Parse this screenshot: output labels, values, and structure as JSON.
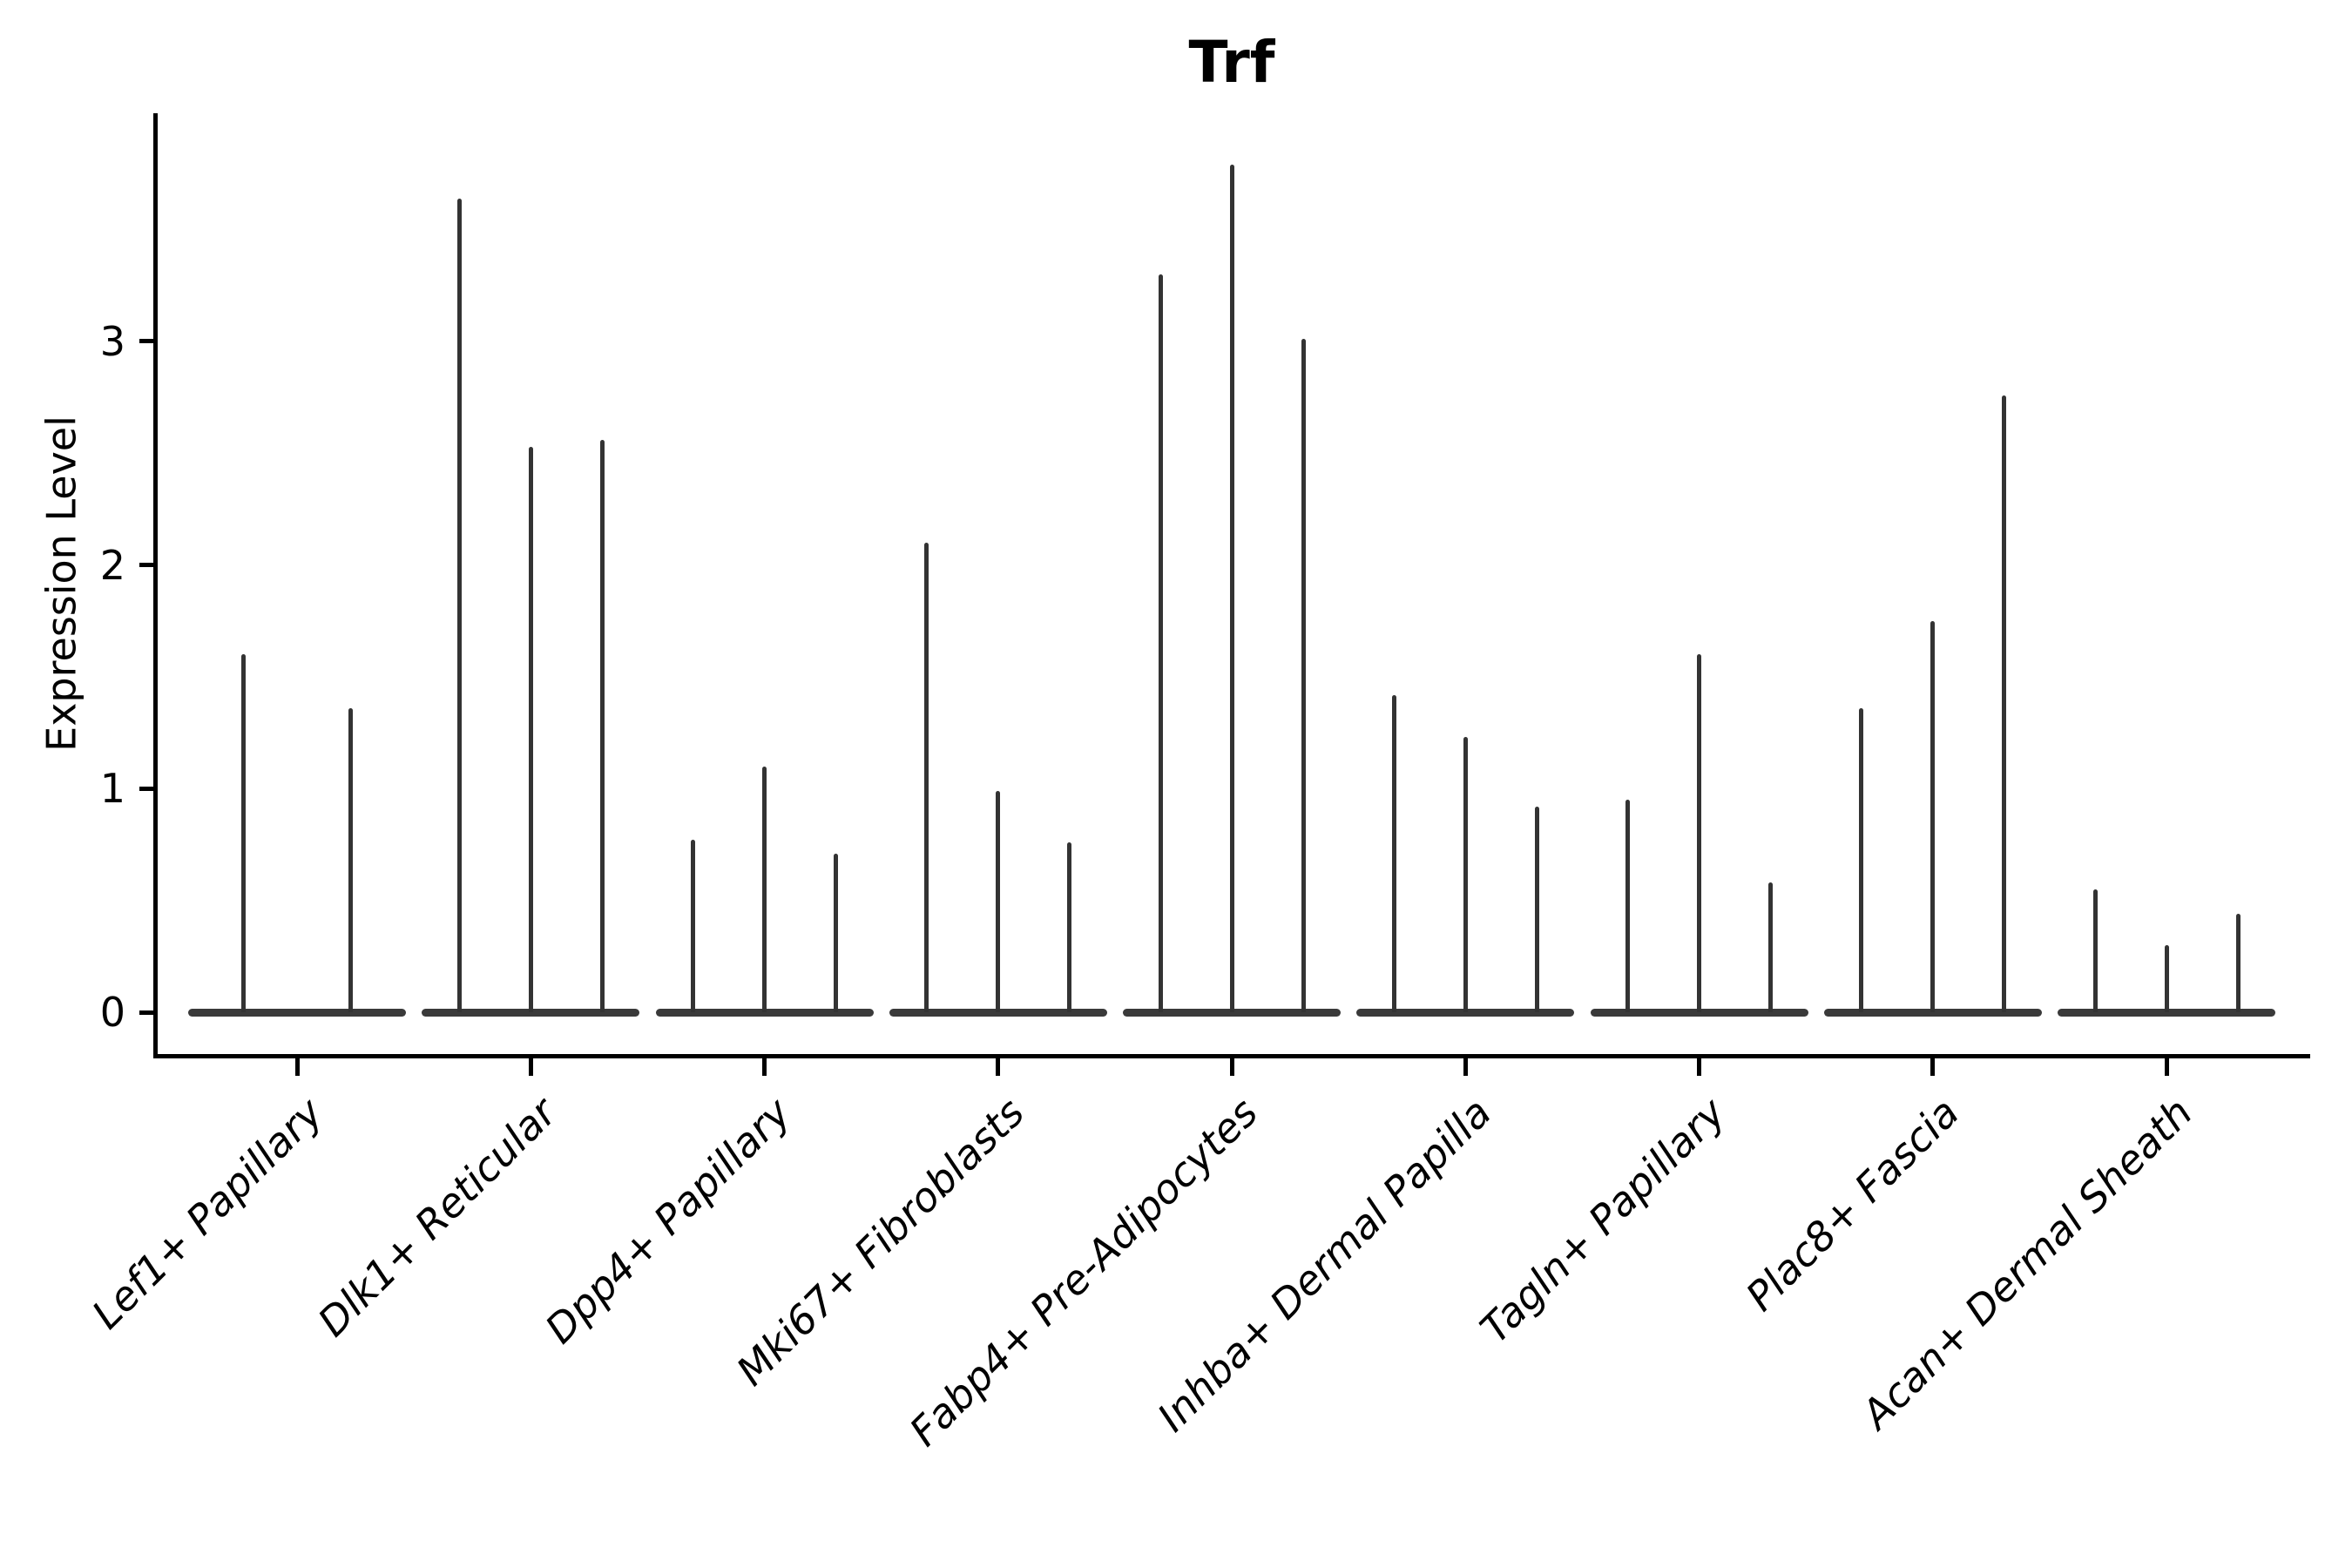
{
  "figure": {
    "title": "Trf"
  },
  "chart_data": {
    "type": "violin",
    "title": "Trf",
    "xlabel": "",
    "ylabel": "Expression Level",
    "yticks": [
      0,
      1,
      2,
      3
    ],
    "ylim": [
      -0.19,
      4.02
    ],
    "grid": false,
    "legend": false,
    "x_tick_rotation": 45,
    "x_tick_style": "italic",
    "categories": [
      "Lef1+ Papillary",
      "Dlk1+ Reticular",
      "Dpp4+ Papillary",
      "Mki67+ Fibroblasts",
      "Fabp4+ Pre-Adipocytes",
      "Inhba+ Dermal Papilla",
      "Tagln+ Papillary",
      "Plac8+ Fascia",
      "Acan+ Dermal Sheath"
    ],
    "series": [
      {
        "name": "Lef1+ Papillary",
        "violin_max_values": [
          1.6,
          1.36
        ]
      },
      {
        "name": "Dlk1+ Reticular",
        "violin_max_values": [
          3.64,
          2.53,
          2.56
        ]
      },
      {
        "name": "Dpp4+ Papillary",
        "violin_max_values": [
          0.77,
          1.1,
          0.71
        ]
      },
      {
        "name": "Mki67+ Fibroblasts",
        "violin_max_values": [
          2.1,
          0.99,
          0.76
        ]
      },
      {
        "name": "Fabp4+ Pre-Adipocytes",
        "violin_max_values": [
          3.3,
          3.79,
          3.01
        ]
      },
      {
        "name": "Inhba+ Dermal Papilla",
        "violin_max_values": [
          1.42,
          1.23,
          0.92
        ]
      },
      {
        "name": "Tagln+ Papillary",
        "violin_max_values": [
          0.95,
          1.6,
          0.58
        ]
      },
      {
        "name": "Plac8+ Fascia",
        "violin_max_values": [
          1.36,
          1.75,
          2.76
        ]
      },
      {
        "name": "Acan+ Dermal Sheath",
        "violin_max_values": [
          0.55,
          0.3,
          0.44
        ]
      }
    ],
    "description": "Violin plot of Trf expression; each cluster shows thin spike violins rising from a flat base at 0 (most cells with zero expression).",
    "colors": {
      "violin_spike": "#333333",
      "violin_base": "#3a3a3a",
      "axis": "#000000",
      "text": "#000000",
      "background": "#ffffff"
    }
  }
}
